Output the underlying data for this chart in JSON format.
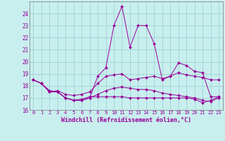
{
  "xlabel": "Windchill (Refroidissement éolien,°C)",
  "xlim": [
    -0.5,
    23.5
  ],
  "ylim": [
    16,
    25
  ],
  "yticks": [
    16,
    17,
    18,
    19,
    20,
    21,
    22,
    23,
    24
  ],
  "xticks": [
    0,
    1,
    2,
    3,
    4,
    5,
    6,
    7,
    8,
    9,
    10,
    11,
    12,
    13,
    14,
    15,
    16,
    17,
    18,
    19,
    20,
    21,
    22,
    23
  ],
  "bg_color": "#c8eeee",
  "line_color": "#990099",
  "grid_color": "#99cccc",
  "series": [
    [
      18.5,
      18.2,
      17.5,
      17.5,
      17.0,
      16.8,
      16.8,
      17.0,
      18.8,
      19.5,
      23.0,
      24.6,
      21.2,
      23.0,
      23.0,
      21.5,
      18.5,
      18.8,
      19.9,
      19.7,
      19.2,
      19.1,
      17.1,
      17.1
    ],
    [
      18.5,
      18.2,
      17.5,
      17.6,
      17.3,
      17.2,
      17.3,
      17.5,
      18.2,
      18.8,
      18.9,
      19.0,
      18.5,
      18.6,
      18.7,
      18.8,
      18.6,
      18.8,
      19.1,
      18.9,
      18.8,
      18.7,
      18.5,
      18.5
    ],
    [
      18.5,
      18.2,
      17.6,
      17.5,
      17.0,
      16.8,
      16.9,
      17.1,
      17.1,
      17.1,
      17.1,
      17.1,
      17.0,
      17.0,
      17.0,
      17.0,
      17.0,
      17.0,
      17.0,
      17.0,
      16.9,
      16.6,
      16.8,
      17.1
    ],
    [
      18.5,
      18.2,
      17.6,
      17.5,
      17.0,
      16.8,
      16.8,
      17.0,
      17.3,
      17.6,
      17.8,
      17.9,
      17.8,
      17.7,
      17.7,
      17.6,
      17.4,
      17.3,
      17.2,
      17.1,
      17.0,
      16.8,
      16.7,
      17.0
    ]
  ]
}
